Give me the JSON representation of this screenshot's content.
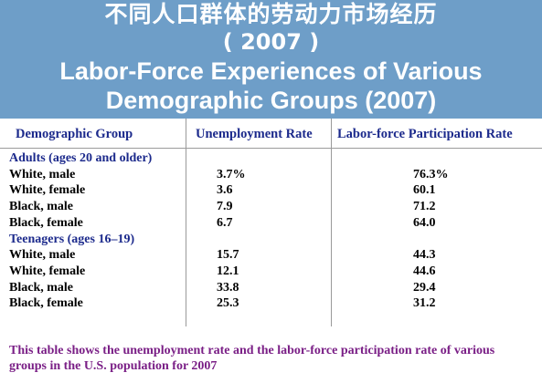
{
  "title": {
    "chinese": "不同人口群体的劳动力市场经历",
    "year": "( 2007 )",
    "english": "Labor-Force Experiences of Various Demographic Groups (2007)"
  },
  "table": {
    "headers": [
      "Demographic Group",
      "Unemployment Rate",
      "Labor-force Participation Rate"
    ],
    "groups": [
      {
        "label": "Adults (ages 20 and older)",
        "rows": [
          {
            "group": "White, male",
            "unemployment": "3.7%",
            "participation": "76.3%"
          },
          {
            "group": "White, female",
            "unemployment": "3.6",
            "participation": "60.1"
          },
          {
            "group": "Black, male",
            "unemployment": "7.9",
            "participation": "71.2"
          },
          {
            "group": "Black, female",
            "unemployment": "6.7",
            "participation": "64.0"
          }
        ]
      },
      {
        "label": "Teenagers (ages 16–19)",
        "rows": [
          {
            "group": "White, male",
            "unemployment": "15.7",
            "participation": "44.3"
          },
          {
            "group": "White, female",
            "unemployment": "12.1",
            "participation": "44.6"
          },
          {
            "group": "Black, male",
            "unemployment": "33.8",
            "participation": "29.4"
          },
          {
            "group": "Black, female",
            "unemployment": "25.3",
            "participation": "31.2"
          }
        ]
      }
    ]
  },
  "caption": "This table shows the unemployment rate and the labor-force participation rate of various groups in the U.S. population for 2007",
  "colors": {
    "background": "#6e9ec8",
    "header_text": "#1c2a8c",
    "caption_text": "#7a1f86"
  }
}
